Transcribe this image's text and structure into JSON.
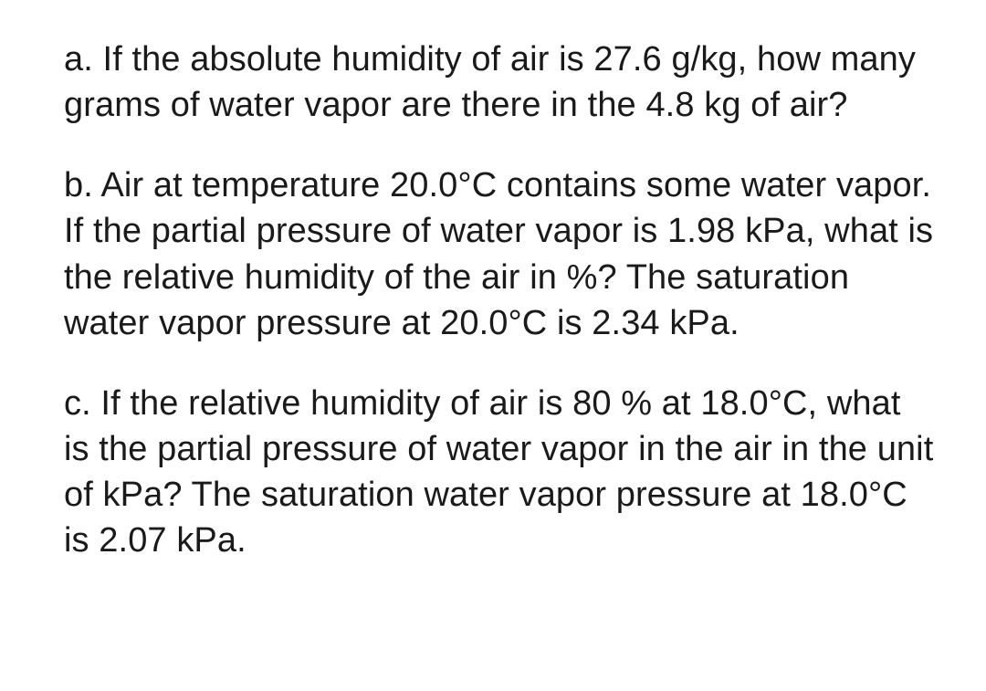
{
  "document": {
    "font_family": "Arial, Helvetica, sans-serif",
    "text_color": "#1a1a1a",
    "background_color": "#ffffff",
    "font_size_pt": 28,
    "line_height": 1.32,
    "questions": {
      "a": "a. If the absolute humidity of air is 27.6 g/kg, how many grams of water vapor are there in the 4.8 kg of air?",
      "b": "b. Air at temperature 20.0°C contains some water vapor. If the partial pressure of water vapor is 1.98 kPa, what is the relative humidity of the air in %? The saturation water vapor pressure at 20.0°C is 2.34 kPa.",
      "c": "c. If the relative humidity of air is 80 % at 18.0°C, what is the partial pressure of water vapor in the air in the unit of kPa? The saturation water vapor pressure at 18.0°C is 2.07 kPa."
    }
  }
}
